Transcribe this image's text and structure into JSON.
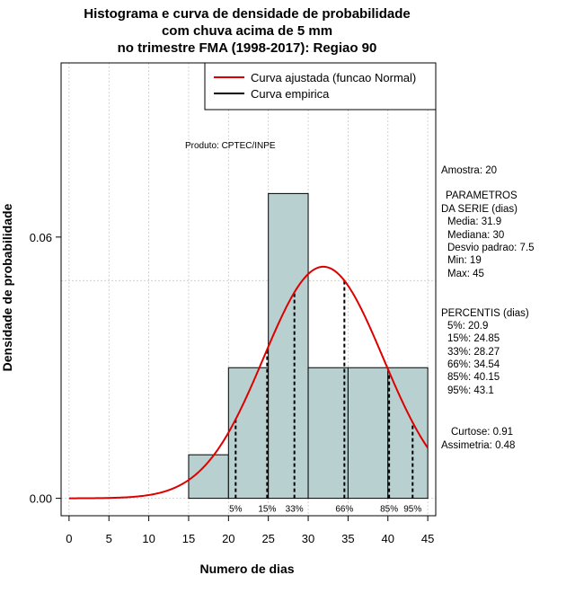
{
  "chart_data": {
    "type": "histogram",
    "title_lines": [
      "Histograma e curva de densidade de probabilidade",
      "com chuva acima de 5 mm",
      "no trimestre FMA (1998-2017): Regiao 90"
    ],
    "xlabel": "Numero de dias",
    "ylabel": "Densidade de probabilidade",
    "xlim": [
      -1,
      46
    ],
    "ylim": [
      -0.004,
      0.1
    ],
    "x_ticks": [
      0,
      5,
      10,
      15,
      20,
      25,
      30,
      35,
      40,
      45
    ],
    "y_ticks": [
      0.0,
      0.06
    ],
    "y_tick_labels": [
      "0.00",
      "0.06"
    ],
    "grid_x": [
      0,
      5,
      10,
      15,
      20,
      25,
      30,
      35,
      40,
      45
    ],
    "grid_y": [
      0.0,
      0.05,
      0.1
    ],
    "bins": [
      {
        "x0": 15,
        "x1": 20,
        "density": 0.01
      },
      {
        "x0": 20,
        "x1": 25,
        "density": 0.03
      },
      {
        "x0": 25,
        "x1": 30,
        "density": 0.07
      },
      {
        "x0": 30,
        "x1": 35,
        "density": 0.03
      },
      {
        "x0": 35,
        "x1": 40,
        "density": 0.03
      },
      {
        "x0": 40,
        "x1": 45,
        "density": 0.03
      }
    ],
    "bar_color": "#b8d0d0",
    "normal_fit": {
      "mean": 31.9,
      "sd": 7.5,
      "color": "#dd0000",
      "x_range": [
        0,
        45
      ]
    },
    "percentiles": [
      {
        "label": "5%",
        "value": 20.9
      },
      {
        "label": "15%",
        "value": 24.85
      },
      {
        "label": "33%",
        "value": 28.27
      },
      {
        "label": "66%",
        "value": 34.54
      },
      {
        "label": "85%",
        "value": 40.15
      },
      {
        "label": "95%",
        "value": 43.1
      }
    ],
    "legend": [
      {
        "label": "Curva ajustada (funcao Normal)",
        "color": "#dd0000"
      },
      {
        "label": "Curva empirica",
        "color": "#000000"
      }
    ],
    "legend_position": "top-right"
  },
  "annotations": {
    "produto": "Produto: CPTEC/INPE"
  },
  "stats": {
    "amostra": "Amostra: 20",
    "parametros_title": "PARAMETROS",
    "parametros_sub": "DA SERIE (dias)",
    "parametros": [
      "Media: 31.9",
      "Mediana: 30",
      "Desvio padrao: 7.5",
      "Min: 19",
      "Max: 45"
    ],
    "percentis_title": "PERCENTIS (dias)",
    "percentis": [
      "5%: 20.9",
      "15%: 24.85",
      "33%: 28.27",
      "66%: 34.54",
      "85%: 40.15",
      "95%: 43.1"
    ],
    "curtose": "Curtose: 0.91",
    "assimetria": "Assimetria: 0.48"
  }
}
